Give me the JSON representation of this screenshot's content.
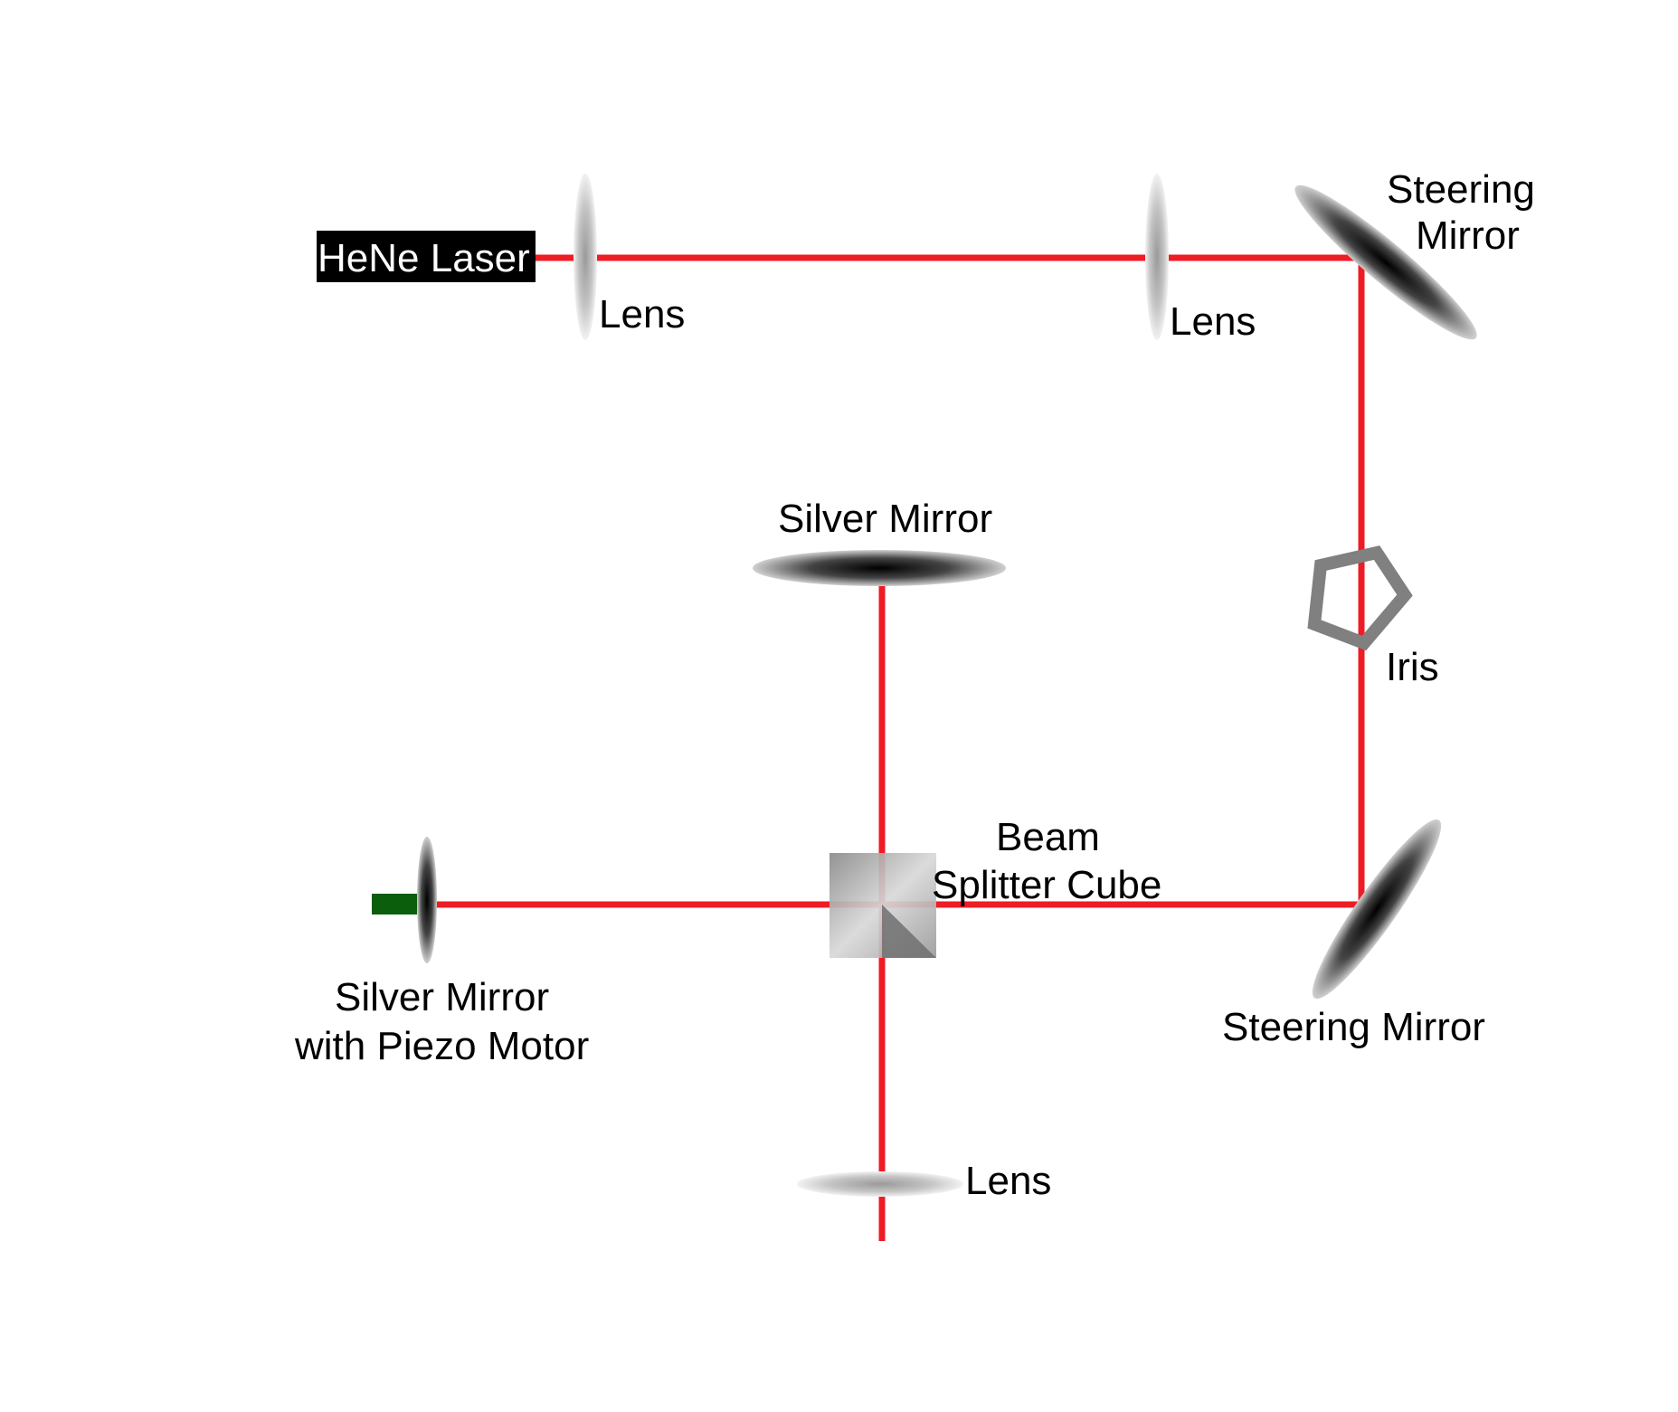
{
  "labels": {
    "laser": "HeNe Laser",
    "lens_1": "Lens",
    "lens_2": "Lens",
    "steering_mirror_top_1": "Steering",
    "steering_mirror_top_2": "Mirror",
    "silver_mirror_top": "Silver Mirror",
    "iris": "Iris",
    "beam_splitter_1": "Beam",
    "beam_splitter_2": "Splitter Cube",
    "silver_mirror_piezo_1": "Silver Mirror",
    "silver_mirror_piezo_2": "with Piezo Motor",
    "steering_mirror_bottom": "Steering Mirror",
    "lens_bottom": "Lens"
  },
  "colors": {
    "beam": "#ee1c24",
    "laser_body": "#000000",
    "iris": "#808080",
    "piezo_motor": "#0b5e0b",
    "optic_dark": "#1a1a1a",
    "optic_light": "#d8d8d8"
  }
}
